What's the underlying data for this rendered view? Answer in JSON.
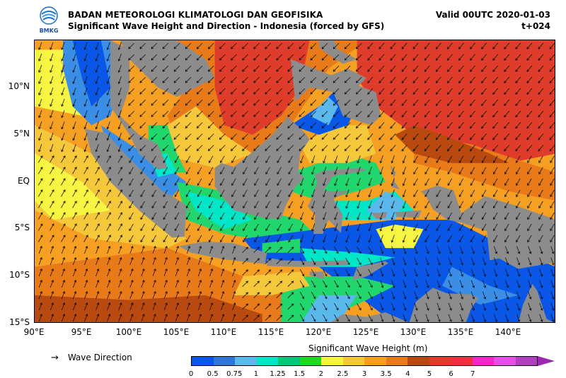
{
  "header": {
    "agency": "BADAN METEOROLOGI KLIMATOLOGI DAN GEOFISIKA",
    "subtitle": "Significant Wave Height and Direction - Indonesia (forced by GFS)",
    "valid": "Valid 00UTC 2020-01-03",
    "timestep": "t+024",
    "logo_text": "BMKG"
  },
  "map": {
    "lat_labels": [
      "10°N",
      "5°N",
      "EQ",
      "5°S",
      "10°S",
      "15°S"
    ],
    "lon_labels": [
      "90°E",
      "95°E",
      "100°E",
      "105°E",
      "110°E",
      "115°E",
      "120°E",
      "125°E",
      "130°E",
      "135°E",
      "140°E"
    ],
    "lat_range": [
      -15,
      15
    ],
    "lon_range": [
      90,
      145
    ],
    "colors": {
      "land": "#8c8c8c",
      "deep_blue": "#0a56e6",
      "mid_blue": "#3a8ee6",
      "light_blue": "#5ab8ec",
      "cyan": "#00e6c8",
      "green": "#22d66e",
      "yellow": "#f5f542",
      "yellow_orange": "#f5c83c",
      "orange": "#f5a023",
      "dark_orange": "#e87a1a",
      "brown": "#b84a10",
      "red": "#e03c2c"
    }
  },
  "legend": {
    "direction_label": "Wave Direction",
    "colorbar_title": "Significant Wave Height (m)",
    "colorbar_colors": [
      "#0a56e6",
      "#2f77d6",
      "#5ab8ec",
      "#00e6c8",
      "#00c878",
      "#22d622",
      "#f5f542",
      "#f5c83c",
      "#f5a023",
      "#e87a1a",
      "#b84a10",
      "#e03c2c",
      "#f03040",
      "#f028c8",
      "#e650e6",
      "#b040c0"
    ],
    "tick_labels": [
      "0",
      "0.5",
      "0.75",
      "1",
      "1.25",
      "1.5",
      "2",
      "2.5",
      "3",
      "3.5",
      "4",
      "5",
      "6",
      "7"
    ]
  }
}
